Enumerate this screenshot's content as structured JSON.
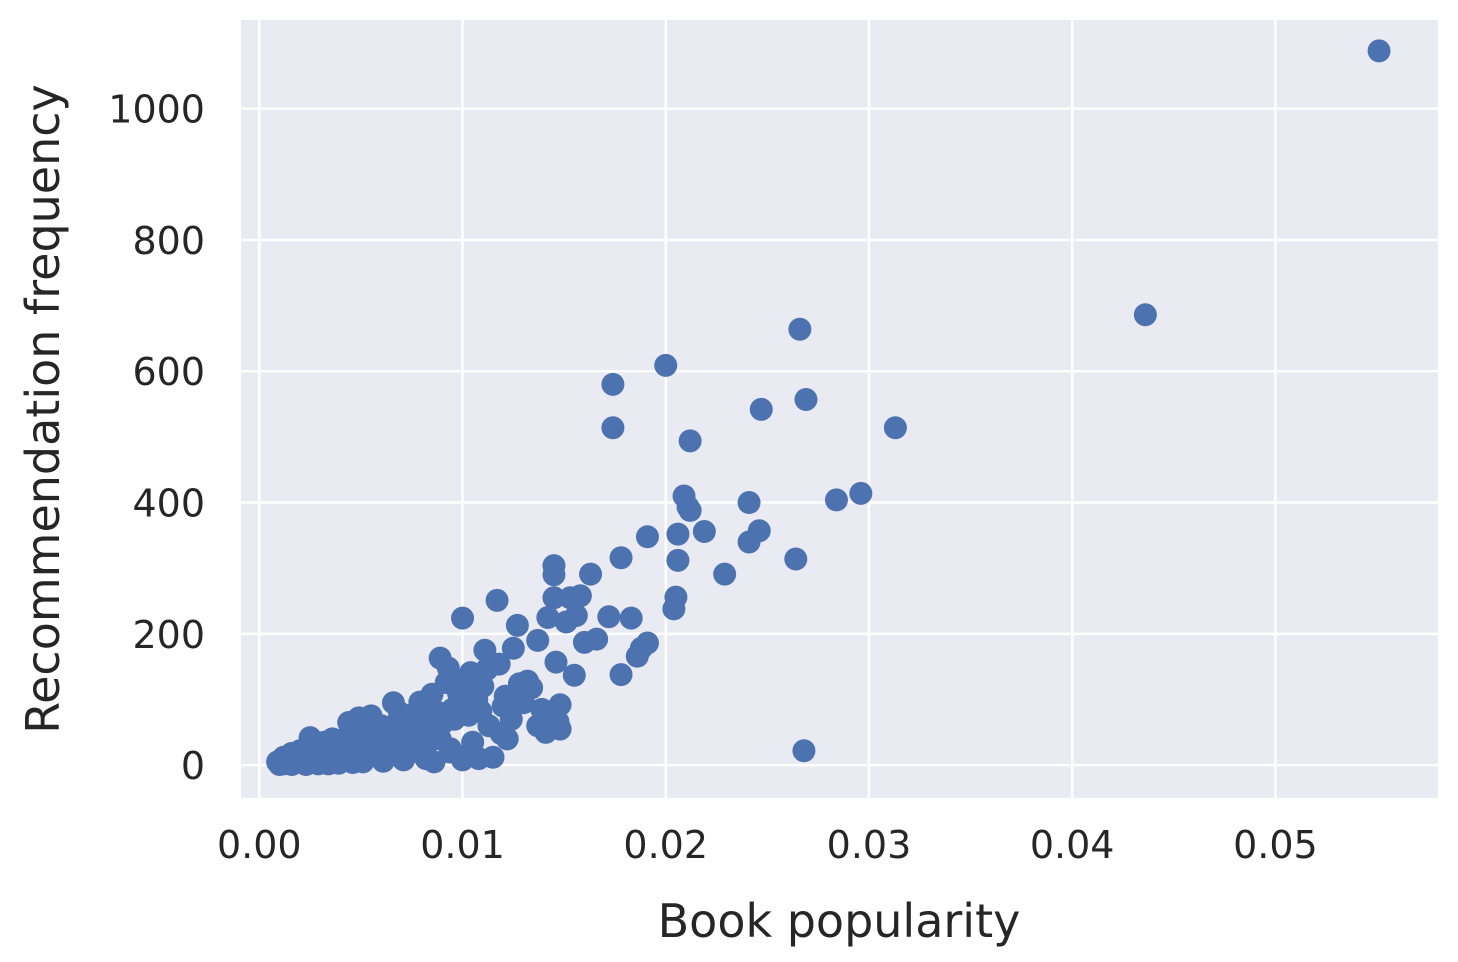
{
  "chart_data": {
    "type": "scatter",
    "xlabel": "Book popularity",
    "ylabel": "Recommendation frequency",
    "xlim": [
      -0.0009,
      0.058
    ],
    "ylim": [
      -50,
      1135
    ],
    "xticks": [
      0.0,
      0.01,
      0.02,
      0.03,
      0.04,
      0.05
    ],
    "xtick_labels": [
      "0.00",
      "0.01",
      "0.02",
      "0.03",
      "0.04",
      "0.05"
    ],
    "yticks": [
      0,
      200,
      400,
      600,
      800,
      1000
    ],
    "ytick_labels": [
      "0",
      "200",
      "400",
      "600",
      "800",
      "1000"
    ],
    "grid": true,
    "colors": {
      "background": "#eaeaf2",
      "grid": "#ffffff",
      "points": "#4c72b0"
    },
    "series": [
      {
        "x": [
          0.0551,
          0.0436,
          0.0266,
          0.02,
          0.0174,
          0.0174,
          0.0269,
          0.0247,
          0.0313,
          0.0212,
          0.0296,
          0.0284,
          0.0209,
          0.0211,
          0.0241,
          0.0212,
          0.0219,
          0.0206,
          0.0246,
          0.0241,
          0.0264,
          0.0191,
          0.0206,
          0.0229,
          0.0145,
          0.0145,
          0.0163,
          0.0178,
          0.0204,
          0.0205,
          0.0145,
          0.0153,
          0.0158,
          0.0117,
          0.01,
          0.0172,
          0.0183,
          0.0142,
          0.0156,
          0.0151,
          0.0127,
          0.016,
          0.0166,
          0.0137,
          0.0191,
          0.0188,
          0.0125,
          0.0111,
          0.0186,
          0.0146,
          0.0118,
          0.0089,
          0.0155,
          0.0178,
          0.0132,
          0.0128,
          0.0148,
          0.0093,
          0.0112,
          0.0104,
          0.0085,
          0.0101,
          0.0134,
          0.0147,
          0.0092,
          0.0079,
          0.0066,
          0.0069,
          0.0076,
          0.0055,
          0.0049,
          0.0044,
          0.0098,
          0.0107,
          0.012,
          0.0148,
          0.0141,
          0.0137,
          0.0124,
          0.0106,
          0.0036,
          0.0025,
          0.006,
          0.007,
          0.008,
          0.009,
          0.0058,
          0.0047,
          0.0032,
          0.0085,
          0.0075,
          0.0065,
          0.0055,
          0.0045,
          0.004,
          0.003,
          0.0022,
          0.0018,
          0.0014,
          0.0011,
          0.0009,
          0.0012,
          0.0016,
          0.002,
          0.0026,
          0.0033,
          0.0038,
          0.0043,
          0.005,
          0.0053,
          0.0057,
          0.0062,
          0.0067,
          0.0072,
          0.0078,
          0.0083,
          0.0088,
          0.0095,
          0.0097,
          0.0082,
          0.0074,
          0.0063,
          0.0052,
          0.0041,
          0.0035,
          0.0028,
          0.0024,
          0.0019,
          0.0015,
          0.0013,
          0.001,
          0.0017,
          0.0021,
          0.0027,
          0.0031,
          0.0037,
          0.0042,
          0.0048,
          0.0054,
          0.0059,
          0.0064,
          0.0068,
          0.0073,
          0.0077,
          0.0081,
          0.0087,
          0.0091,
          0.0096,
          0.0103,
          0.0109,
          0.0113,
          0.0119,
          0.0122,
          0.0082,
          0.0071,
          0.0061,
          0.0051,
          0.0046,
          0.0039,
          0.0034,
          0.0029,
          0.0023,
          0.0016,
          0.0012,
          0.001,
          0.0014,
          0.0018,
          0.0026,
          0.0032,
          0.0044,
          0.0056,
          0.0068,
          0.0079,
          0.0089,
          0.0094,
          0.0102,
          0.0108,
          0.0115,
          0.01,
          0.0086,
          0.0268,
          0.0084,
          0.0099,
          0.011,
          0.0121,
          0.013,
          0.0139,
          0.0105,
          0.0094,
          0.0076,
          0.0062,
          0.005,
          0.0038,
          0.0027,
          0.002
        ],
        "y": [
          1088,
          686,
          664,
          609,
          580,
          514,
          557,
          542,
          514,
          494,
          414,
          404,
          410,
          393,
          400,
          388,
          356,
          352,
          357,
          340,
          314,
          348,
          312,
          291,
          304,
          290,
          291,
          316,
          238,
          256,
          255,
          255,
          258,
          251,
          224,
          226,
          224,
          225,
          228,
          218,
          213,
          187,
          192,
          190,
          186,
          178,
          178,
          175,
          166,
          157,
          154,
          163,
          137,
          138,
          128,
          124,
          92,
          148,
          146,
          141,
          108,
          130,
          118,
          66,
          126,
          96,
          95,
          80,
          78,
          75,
          72,
          65,
          110,
          100,
          90,
          55,
          50,
          60,
          70,
          85,
          40,
          42,
          60,
          55,
          60,
          70,
          45,
          50,
          35,
          65,
          50,
          45,
          40,
          35,
          30,
          25,
          20,
          15,
          10,
          8,
          5,
          12,
          18,
          22,
          28,
          32,
          36,
          42,
          48,
          52,
          55,
          58,
          62,
          66,
          70,
          74,
          80,
          85,
          90,
          30,
          25,
          20,
          15,
          12,
          10,
          8,
          6,
          5,
          4,
          3,
          2,
          6,
          10,
          14,
          18,
          22,
          26,
          30,
          34,
          38,
          42,
          46,
          50,
          54,
          58,
          62,
          66,
          70,
          76,
          82,
          60,
          48,
          40,
          10,
          8,
          6,
          5,
          4,
          3,
          2,
          2,
          1,
          1,
          2,
          1,
          3,
          4,
          12,
          15,
          20,
          25,
          30,
          35,
          40,
          20,
          15,
          10,
          12,
          8,
          5,
          22,
          90,
          115,
          120,
          105,
          95,
          85,
          35,
          25,
          22,
          18,
          14,
          10,
          6,
          4
        ]
      }
    ]
  }
}
